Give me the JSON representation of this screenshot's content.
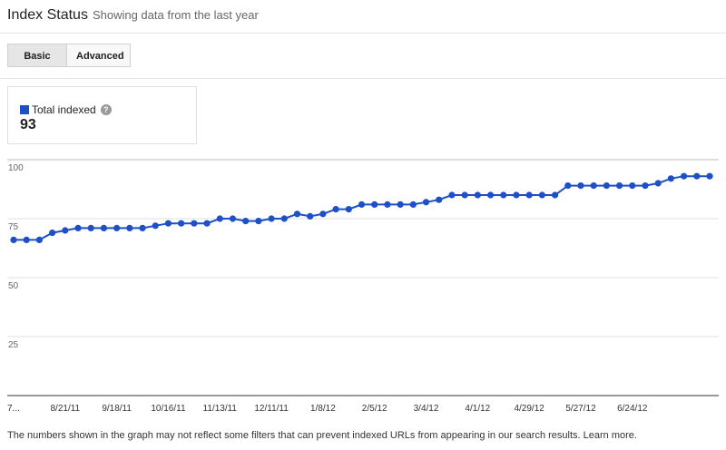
{
  "header": {
    "title": "Index Status",
    "subtitle": "Showing data from the last year"
  },
  "tabs": [
    {
      "label": "Basic",
      "active": true
    },
    {
      "label": "Advanced",
      "active": false
    }
  ],
  "metric": {
    "label": "Total indexed",
    "value": "93",
    "color": "#1d50c6",
    "help_icon": "question-icon"
  },
  "chart_data": {
    "type": "line",
    "ylim": [
      0,
      100
    ],
    "y_ticks": [
      100,
      75,
      50,
      25
    ],
    "x_tick_labels": [
      "7...",
      "8/21/11",
      "9/18/11",
      "10/16/11",
      "11/13/11",
      "12/11/11",
      "1/8/12",
      "2/5/12",
      "3/4/12",
      "4/1/12",
      "4/29/12",
      "5/27/12",
      "6/24/12"
    ],
    "series": [
      {
        "color": "#1d50c6",
        "values": [
          66,
          66,
          66,
          69,
          70,
          71,
          71,
          71,
          71,
          71,
          71,
          72,
          73,
          73,
          73,
          73,
          75,
          75,
          74,
          74,
          75,
          75,
          77,
          76,
          77,
          79,
          79,
          81,
          81,
          81,
          81,
          81,
          82,
          83,
          85,
          85,
          85,
          85,
          85,
          85,
          85,
          85,
          85,
          89,
          89,
          89,
          89,
          89,
          89,
          89,
          90,
          92,
          93,
          93,
          93
        ]
      }
    ],
    "grid": true
  },
  "footnote": "The numbers shown in the graph may not reflect some filters that can prevent indexed URLs from appearing in our search results. Learn more."
}
